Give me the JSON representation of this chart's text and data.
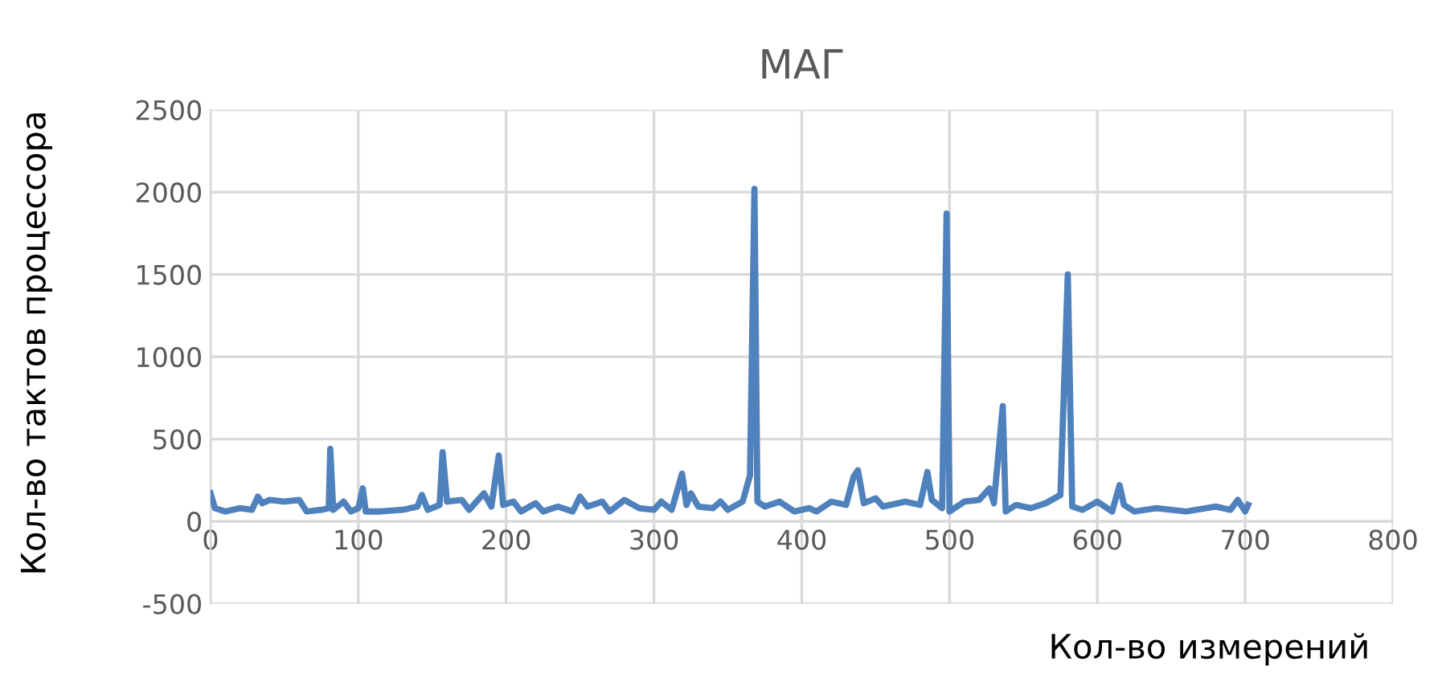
{
  "chart_data": {
    "type": "line",
    "title": "МАГ",
    "xlabel": "Кол-во измерений",
    "ylabel": "Кол-во тактов процессора",
    "xlim": [
      0,
      800
    ],
    "xticks": [
      0,
      100,
      200,
      300,
      400,
      500,
      600,
      700,
      800
    ],
    "ylim": [
      -500,
      2500
    ],
    "yticks": [
      -500,
      0,
      500,
      1000,
      1500,
      2000,
      2500
    ],
    "grid": true,
    "line_style": "solid",
    "marker": "none",
    "series": [
      {
        "color": "#4f81bd",
        "x": [
          0,
          3,
          10,
          20,
          28,
          32,
          35,
          40,
          50,
          60,
          65,
          75,
          80,
          81,
          83,
          90,
          95,
          100,
          103,
          105,
          115,
          130,
          140,
          143,
          147,
          155,
          157,
          160,
          170,
          175,
          180,
          185,
          190,
          195,
          198,
          205,
          210,
          220,
          225,
          235,
          245,
          250,
          255,
          265,
          270,
          280,
          290,
          300,
          305,
          312,
          319,
          322,
          325,
          330,
          340,
          345,
          350,
          360,
          365,
          368,
          370,
          375,
          385,
          395,
          405,
          410,
          420,
          430,
          435,
          438,
          442,
          450,
          455,
          470,
          480,
          485,
          488,
          495,
          498,
          500,
          510,
          520,
          527,
          530,
          536,
          538,
          545,
          555,
          565,
          575,
          580,
          583,
          590,
          600,
          610,
          615,
          618,
          625,
          640,
          660,
          680,
          690,
          695,
          700,
          702
        ],
        "values": [
          170,
          80,
          60,
          80,
          70,
          150,
          110,
          130,
          120,
          130,
          60,
          70,
          80,
          440,
          70,
          120,
          60,
          80,
          200,
          60,
          60,
          70,
          90,
          160,
          70,
          100,
          420,
          120,
          130,
          70,
          120,
          170,
          90,
          400,
          100,
          120,
          60,
          110,
          60,
          90,
          60,
          150,
          90,
          120,
          60,
          130,
          80,
          70,
          120,
          70,
          290,
          100,
          170,
          90,
          80,
          120,
          70,
          120,
          280,
          2020,
          120,
          90,
          120,
          60,
          80,
          60,
          120,
          100,
          270,
          310,
          110,
          140,
          90,
          120,
          100,
          300,
          130,
          80,
          1870,
          60,
          120,
          130,
          200,
          110,
          700,
          60,
          100,
          80,
          110,
          160,
          1500,
          90,
          70,
          120,
          60,
          220,
          100,
          60,
          80,
          60,
          90,
          70,
          130,
          60,
          100
        ]
      }
    ]
  }
}
